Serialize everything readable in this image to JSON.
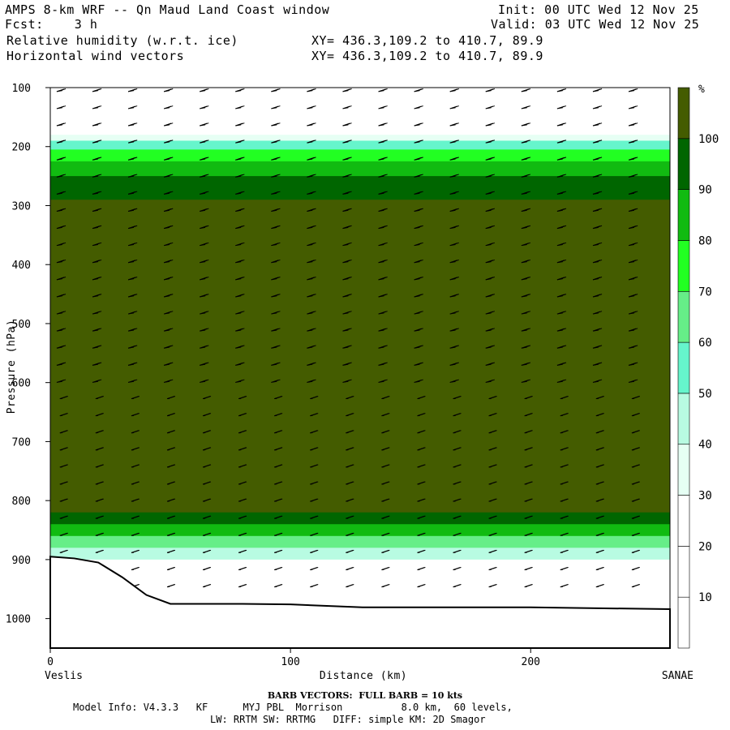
{
  "header": {
    "model_title": "AMPS 8-km WRF -- Qn Maud Land Coast window",
    "init_label": "Init: 00 UTC Wed 12 Nov 25",
    "fcst_label": "Fcst:    3 h",
    "valid_label": "Valid: 03 UTC Wed 12 Nov 25",
    "field1_label": "Relative humidity (w.r.t. ice)",
    "field2_label": "Horizontal wind vectors",
    "xy1_label": "XY= 436.3,109.2 to 410.7, 89.9",
    "xy2_label": "XY= 436.3,109.2 to 410.7, 89.9"
  },
  "chart_data": {
    "type": "heatmap",
    "description_fields": [
      "Relative humidity (w.r.t. ice)",
      "Horizontal wind vectors"
    ],
    "xlabel": "Distance (km)",
    "ylabel": "Pressure (hPa)",
    "xlim": [
      0,
      258
    ],
    "ylim": [
      1050,
      100
    ],
    "x_ticks": [
      0,
      100,
      200
    ],
    "y_ticks": [
      100,
      200,
      300,
      400,
      500,
      600,
      700,
      800,
      900,
      1000
    ],
    "x_start_label": "Veslis",
    "x_end_label": "SANAE",
    "colorbar": {
      "unit": "%",
      "levels": [
        10,
        20,
        30,
        40,
        50,
        60,
        70,
        80,
        90,
        100
      ],
      "colors": [
        "#ffffff",
        "#ffffff",
        "#ffffff",
        "#e6fff4",
        "#b8fbe2",
        "#66f5cc",
        "#66ee88",
        "#22ff22",
        "#11bb11",
        "#006600",
        "#445c00"
      ]
    },
    "humidity_layers": [
      {
        "pressure": 100,
        "rh": 10
      },
      {
        "pressure": 170,
        "rh": 20
      },
      {
        "pressure": 180,
        "rh": 35
      },
      {
        "pressure": 190,
        "rh": 55
      },
      {
        "pressure": 205,
        "rh": 72
      },
      {
        "pressure": 225,
        "rh": 85
      },
      {
        "pressure": 250,
        "rh": 95
      },
      {
        "pressure": 290,
        "rh": 100
      },
      {
        "pressure": 790,
        "rh": 100
      },
      {
        "pressure": 820,
        "rh": 95
      },
      {
        "pressure": 840,
        "rh": 80
      },
      {
        "pressure": 860,
        "rh": 60
      },
      {
        "pressure": 880,
        "rh": 40
      },
      {
        "pressure": 900,
        "rh": 25
      }
    ],
    "terrain_surface": [
      {
        "x": 0,
        "p": 895
      },
      {
        "x": 10,
        "p": 898
      },
      {
        "x": 20,
        "p": 905
      },
      {
        "x": 30,
        "p": 930
      },
      {
        "x": 40,
        "p": 960
      },
      {
        "x": 50,
        "p": 975
      },
      {
        "x": 60,
        "p": 975
      },
      {
        "x": 80,
        "p": 975
      },
      {
        "x": 100,
        "p": 976
      },
      {
        "x": 130,
        "p": 981
      },
      {
        "x": 200,
        "p": 981
      },
      {
        "x": 258,
        "p": 984
      }
    ],
    "wind_barb_note": "BARB VECTORS:  FULL BARB = 10 kts"
  },
  "footer": {
    "barb_note": "BARB VECTORS:  FULL BARB = 10 kts",
    "model_info": "Model Info: V4.3.3   KF      MYJ PBL  Morrison          8.0 km,  60 levels,",
    "physics_info": "LW: RRTM SW: RRTMG   DIFF: simple KM: 2D Smagor"
  }
}
